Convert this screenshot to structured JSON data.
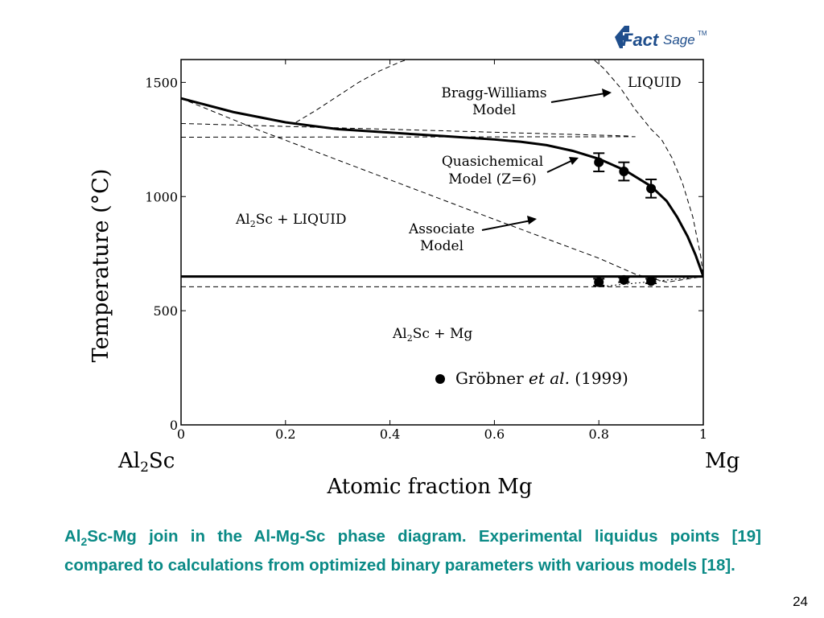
{
  "logo": {
    "text_fact": "Fact",
    "text_sage": "Sage",
    "tm": "TM"
  },
  "chart_data": {
    "type": "line",
    "title": "",
    "xlabel": "Atomic fraction Mg",
    "ylabel": "Temperature (°C)",
    "xlim": [
      0,
      1
    ],
    "ylim": [
      0,
      1600
    ],
    "xticks": [
      0,
      0.2,
      0.4,
      0.6,
      0.8,
      1
    ],
    "xtick_labels": [
      "0",
      "0.2",
      "0.4",
      "0.6",
      "0.8",
      "1"
    ],
    "yticks": [
      0,
      500,
      1000,
      1500
    ],
    "ytick_labels": [
      "0",
      "500",
      "1000",
      "1500"
    ],
    "x_end_labels": {
      "left_sub_pre": "Al",
      "left_sub": "2",
      "left_sub_post": "Sc",
      "right": "Mg"
    },
    "series": [
      {
        "style": "solid-thick",
        "x": [
          0,
          0.1,
          0.2,
          0.3,
          0.4,
          0.5,
          0.6,
          0.65,
          0.7,
          0.75,
          0.8,
          0.85,
          0.9,
          0.93,
          0.95,
          0.97,
          0.985,
          1.0
        ],
        "y": [
          1430,
          1370,
          1325,
          1295,
          1280,
          1265,
          1250,
          1240,
          1225,
          1200,
          1165,
          1115,
          1045,
          980,
          910,
          825,
          745,
          650
        ]
      },
      {
        "style": "solid-thick",
        "x": [
          0,
          1
        ],
        "y": [
          650,
          650
        ]
      },
      {
        "style": "dashed",
        "x": [
          0.22,
          0.26,
          0.3,
          0.34,
          0.38,
          0.42,
          0.46
        ],
        "y": [
          1325,
          1380,
          1440,
          1500,
          1550,
          1590,
          1620
        ]
      },
      {
        "style": "dashed",
        "x": [
          0.78,
          0.81,
          0.84,
          0.87,
          0.9,
          0.92,
          0.94,
          0.96,
          0.98,
          0.995,
          1.0
        ],
        "y": [
          1620,
          1560,
          1480,
          1380,
          1295,
          1250,
          1170,
          1060,
          910,
          740,
          650
        ]
      },
      {
        "style": "dashed",
        "x": [
          0,
          0.86
        ],
        "y": [
          1320,
          1265
        ]
      },
      {
        "style": "dashed",
        "x": [
          0,
          0.87
        ],
        "y": [
          1260,
          1262
        ]
      },
      {
        "style": "dashed",
        "x": [
          0,
          0.15,
          0.3,
          0.45,
          0.6,
          0.7,
          0.8,
          0.87,
          0.93,
          1.0
        ],
        "y": [
          1430,
          1290,
          1160,
          1030,
          900,
          815,
          730,
          660,
          625,
          650
        ]
      },
      {
        "style": "dashed",
        "x": [
          0,
          1
        ],
        "y": [
          605,
          605
        ]
      },
      {
        "style": "dotted",
        "x": [
          0.8,
          1.0
        ],
        "y": [
          605,
          650
        ]
      }
    ],
    "experimental": {
      "name": "Gröbner et al. (1999)",
      "legend_pre": "Gröbner ",
      "legend_italic": "et al.",
      "legend_post": " (1999)",
      "liquidus_points": [
        {
          "x": 0.8,
          "y": 1150,
          "err": 40
        },
        {
          "x": 0.848,
          "y": 1110,
          "err": 40
        },
        {
          "x": 0.9,
          "y": 1035,
          "err": 40
        }
      ],
      "invariant_points": [
        {
          "x": 0.8,
          "y": 625,
          "err": 15
        },
        {
          "x": 0.848,
          "y": 635,
          "err": 10
        },
        {
          "x": 0.9,
          "y": 630,
          "err": 10
        }
      ]
    },
    "region_labels": {
      "liquid": "LIQUID",
      "al2sc_liquid": {
        "pre": "Al",
        "sub": "2",
        "post": "Sc + LIQUID"
      },
      "al2sc_mg": {
        "pre": "Al",
        "sub": "2",
        "post": "Sc + Mg"
      }
    },
    "annotations": {
      "bragg_williams": [
        "Bragg-Williams",
        "Model"
      ],
      "quasichemical": [
        "Quasichemical",
        "Model (Z=6)"
      ],
      "associate": [
        "Associate",
        "Model"
      ]
    }
  },
  "caption": {
    "pre": "Al",
    "sub": "2",
    "post": "Sc-Mg join in the Al-Mg-Sc phase diagram. Experimental liquidus points [19] compared to calculations from optimized binary parameters with various models [18]."
  },
  "page_number": "24"
}
